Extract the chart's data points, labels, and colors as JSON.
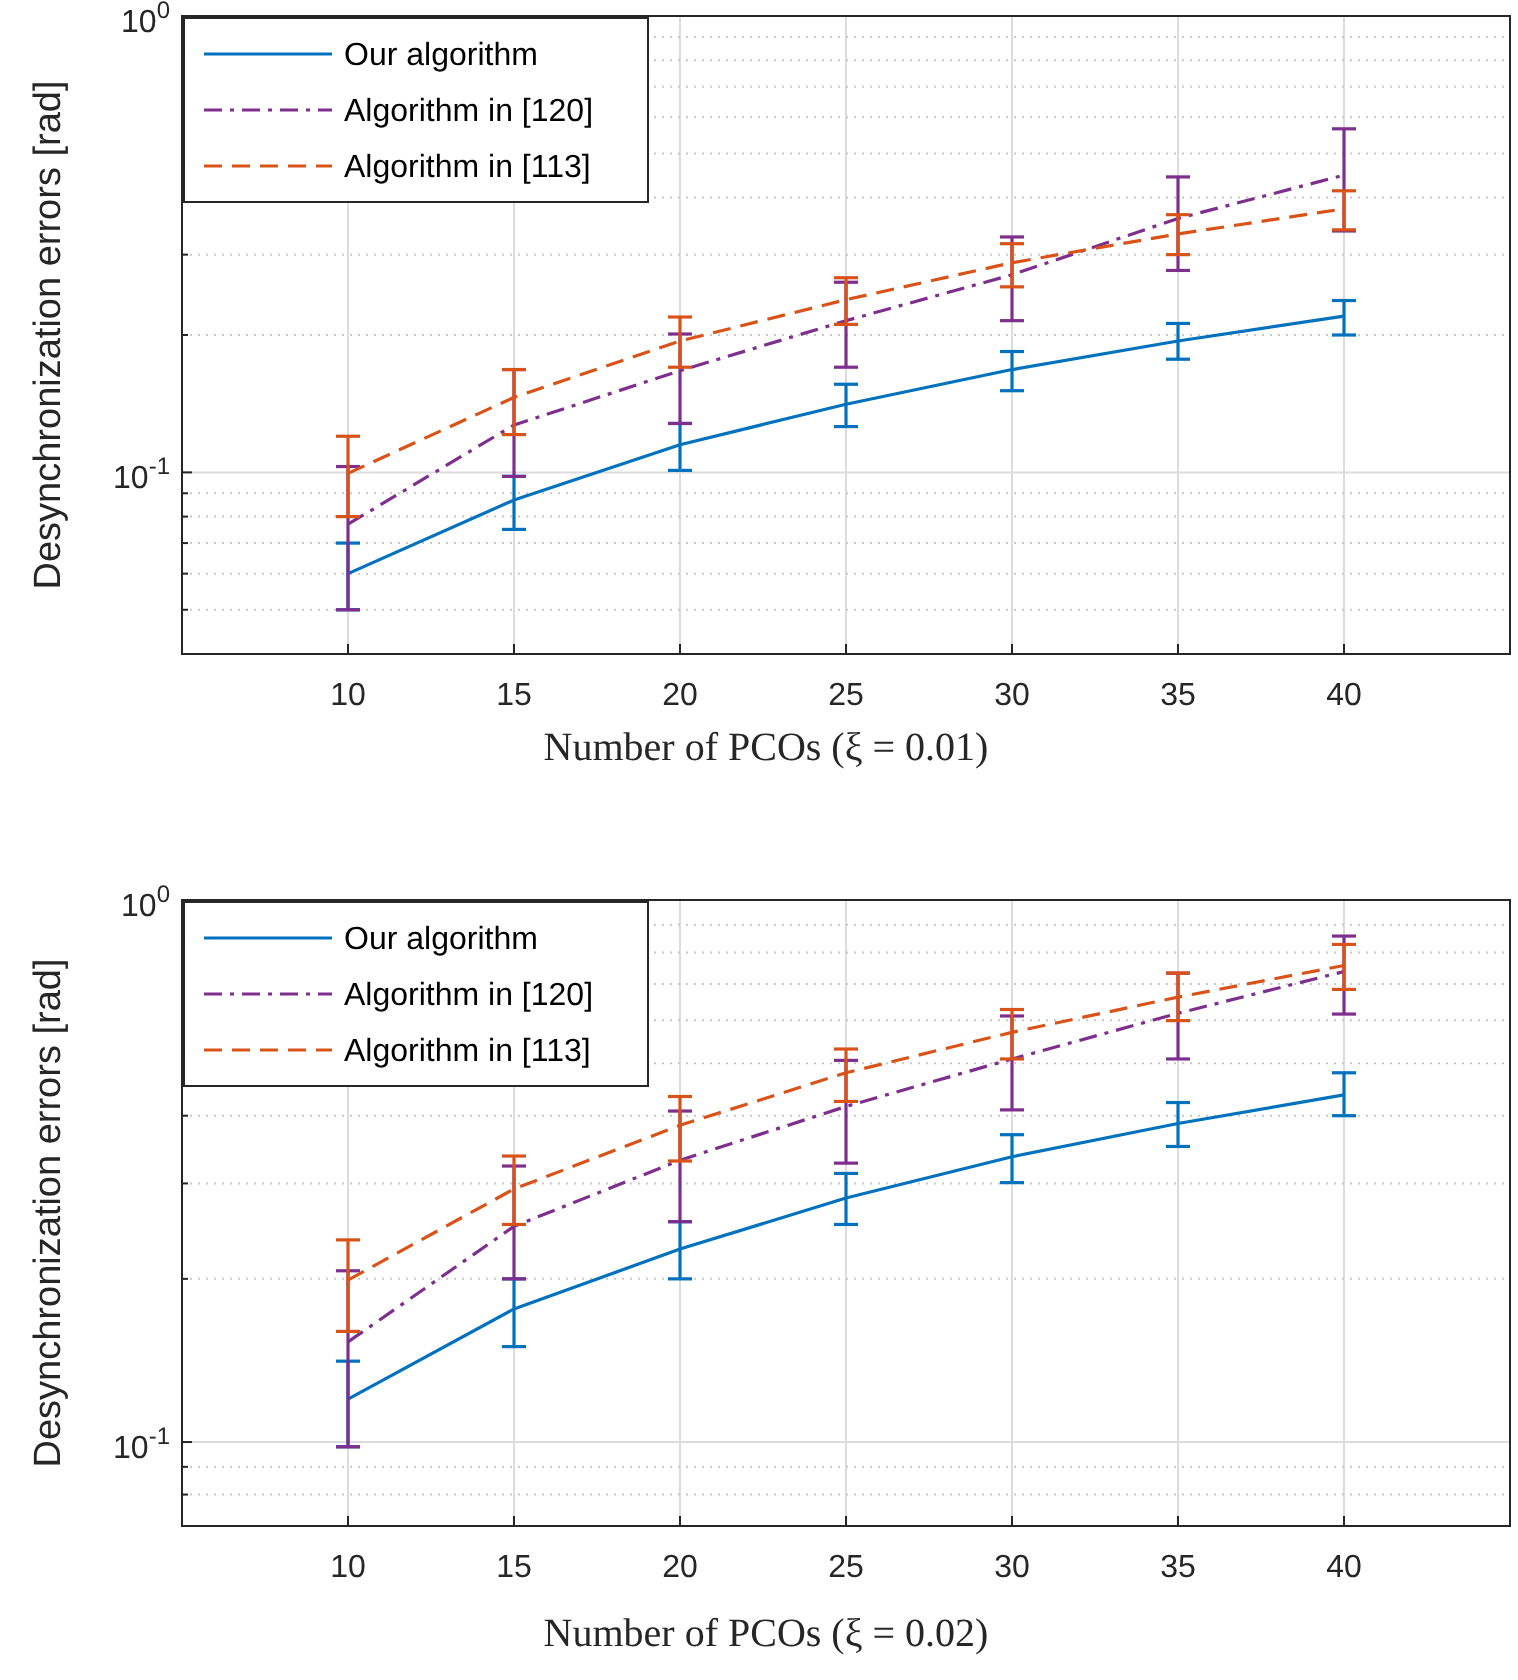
{
  "chart_data": [
    {
      "type": "line",
      "xlabel": "Number of PCOs (ξ = 0.01)",
      "ylabel": "Desynchronization errors [rad]",
      "x": [
        10,
        15,
        20,
        25,
        30,
        35,
        40
      ],
      "xlim": [
        5,
        45
      ],
      "xticks": [
        10,
        15,
        20,
        25,
        30,
        35,
        40
      ],
      "ylim": [
        0.04,
        1
      ],
      "log": "y",
      "yticks": [
        {
          "value": 0.04,
          "label": null
        },
        {
          "value": 0.05,
          "label": null
        },
        {
          "value": 0.06,
          "label": null
        },
        {
          "value": 0.07,
          "label": null
        },
        {
          "value": 0.08,
          "label": null
        },
        {
          "value": 0.09,
          "label": null
        },
        {
          "value": 0.1,
          "label": "10$^{-1}$"
        },
        {
          "value": 0.2,
          "label": null
        },
        {
          "value": 0.3,
          "label": null
        },
        {
          "value": 0.4,
          "label": null
        },
        {
          "value": 0.5,
          "label": null
        },
        {
          "value": 0.6,
          "label": null
        },
        {
          "value": 0.7,
          "label": null
        },
        {
          "value": 0.8,
          "label": null
        },
        {
          "value": 0.9,
          "label": null
        },
        {
          "value": 1,
          "label": "10$^{0}$"
        }
      ],
      "grid": true,
      "legend": "top left",
      "marker": "none",
      "series": [
        {
          "name": "Our algorithm",
          "color": "#0072bd",
          "line_style": "solid",
          "values": [
            0.06,
            0.087,
            0.115,
            0.141,
            0.168,
            0.194,
            0.22
          ],
          "errors": [
            [
              0.05,
              0.07
            ],
            [
              0.075,
              0.098
            ],
            [
              0.101,
              0.128
            ],
            [
              0.126,
              0.156
            ],
            [
              0.151,
              0.184
            ],
            [
              0.177,
              0.212
            ],
            [
              0.2,
              0.238
            ]
          ]
        },
        {
          "name": "Algorithm in [120]",
          "color": "#7e2f8e",
          "line_style": "dashdot",
          "values": [
            0.077,
            0.127,
            0.167,
            0.215,
            0.271,
            0.36,
            0.448
          ],
          "errors": [
            [
              0.05,
              0.103
            ],
            [
              0.098,
              0.168
            ],
            [
              0.128,
              0.201
            ],
            [
              0.17,
              0.261
            ],
            [
              0.215,
              0.328
            ],
            [
              0.277,
              0.444
            ],
            [
              0.338,
              0.566
            ]
          ]
        },
        {
          "name": "Algorithm in [113]",
          "color": "#d95319",
          "line_style": "dashed",
          "values": [
            0.0995,
            0.146,
            0.194,
            0.239,
            0.288,
            0.333,
            0.378
          ],
          "errors": [
            [
              0.08,
              0.12
            ],
            [
              0.121,
              0.168
            ],
            [
              0.17,
              0.219
            ],
            [
              0.211,
              0.267
            ],
            [
              0.255,
              0.317
            ],
            [
              0.3,
              0.367
            ],
            [
              0.34,
              0.414
            ]
          ]
        }
      ]
    },
    {
      "type": "line",
      "xlabel": "Number of PCOs (ξ = 0.02)",
      "ylabel": "Desynchronization errors [rad]",
      "x": [
        10,
        15,
        20,
        25,
        30,
        35,
        40
      ],
      "xlim": [
        5,
        45
      ],
      "xticks": [
        10,
        15,
        20,
        25,
        30,
        35,
        40
      ],
      "ylim": [
        0.07,
        1
      ],
      "log": "y",
      "yticks": [
        {
          "value": 0.07,
          "label": null
        },
        {
          "value": 0.08,
          "label": null
        },
        {
          "value": 0.09,
          "label": null
        },
        {
          "value": 0.1,
          "label": "10$^{-1}$"
        },
        {
          "value": 0.2,
          "label": null
        },
        {
          "value": 0.3,
          "label": null
        },
        {
          "value": 0.4,
          "label": null
        },
        {
          "value": 0.5,
          "label": null
        },
        {
          "value": 0.6,
          "label": null
        },
        {
          "value": 0.7,
          "label": null
        },
        {
          "value": 0.8,
          "label": null
        },
        {
          "value": 0.9,
          "label": null
        },
        {
          "value": 1,
          "label": "10$^{0}$"
        }
      ],
      "grid": true,
      "legend": "top left",
      "marker": "none",
      "series": [
        {
          "name": "Our algorithm",
          "color": "#0072bd",
          "line_style": "solid",
          "values": [
            0.12,
            0.176,
            0.227,
            0.282,
            0.336,
            0.387,
            0.437
          ],
          "errors": [
            [
              0.098,
              0.141
            ],
            [
              0.15,
              0.2
            ],
            [
              0.2,
              0.255
            ],
            [
              0.252,
              0.313
            ],
            [
              0.301,
              0.369
            ],
            [
              0.351,
              0.423
            ],
            [
              0.4,
              0.48
            ]
          ]
        },
        {
          "name": "Algorithm in [120]",
          "color": "#7e2f8e",
          "line_style": "dashdot",
          "values": [
            0.153,
            0.25,
            0.331,
            0.416,
            0.509,
            0.618,
            0.738
          ],
          "errors": [
            [
              0.098,
              0.207
            ],
            [
              0.2,
              0.323
            ],
            [
              0.255,
              0.408
            ],
            [
              0.327,
              0.506
            ],
            [
              0.41,
              0.611
            ],
            [
              0.509,
              0.733
            ],
            [
              0.616,
              0.858
            ]
          ]
        },
        {
          "name": "Algorithm in [113]",
          "color": "#d95319",
          "line_style": "dashed",
          "values": [
            0.199,
            0.293,
            0.384,
            0.48,
            0.57,
            0.662,
            0.757
          ],
          "errors": [
            [
              0.16,
              0.236
            ],
            [
              0.252,
              0.337
            ],
            [
              0.33,
              0.434
            ],
            [
              0.425,
              0.531
            ],
            [
              0.509,
              0.628
            ],
            [
              0.599,
              0.733
            ],
            [
              0.684,
              0.828
            ]
          ]
        }
      ]
    }
  ]
}
